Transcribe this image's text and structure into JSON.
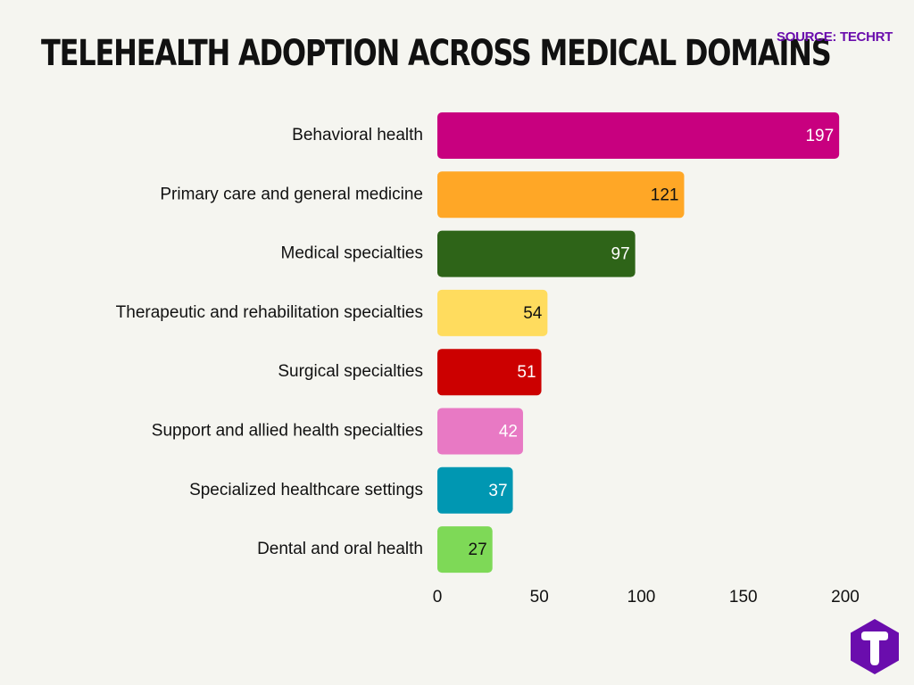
{
  "header": {
    "title": "TELEHEALTH ADOPTION ACROSS MEDICAL DOMAINS",
    "source": "SOURCE: TECHRT"
  },
  "colors": {
    "background": "#f5f5f0",
    "text": "#111111",
    "accent": "#6a0dad"
  },
  "logo": {
    "icon": "techrt-logo-icon",
    "letter": "T",
    "color": "#6a0dad"
  },
  "chart_data": {
    "type": "bar",
    "orientation": "horizontal",
    "title": "TELEHEALTH ADOPTION ACROSS MEDICAL DOMAINS",
    "xlabel": "",
    "ylabel": "",
    "xlim": [
      0,
      200
    ],
    "xticks": [
      0,
      50,
      100,
      150,
      200
    ],
    "grid": false,
    "legend": "none",
    "categories": [
      "Behavioral health",
      "Primary care and general medicine",
      "Medical specialties",
      "Therapeutic and rehabilitation specialties",
      "Surgical specialties",
      "Support and allied health specialties",
      "Specialized healthcare settings",
      "Dental and oral health"
    ],
    "values": [
      197,
      121,
      97,
      54,
      51,
      42,
      37,
      27
    ],
    "bar_colors": [
      "#c8007f",
      "#ffa726",
      "#2e6418",
      "#ffdc5e",
      "#cc0000",
      "#e879c4",
      "#0097b2",
      "#7ed957"
    ],
    "value_label_colors": [
      "#ffffff",
      "#111111",
      "#ffffff",
      "#111111",
      "#ffffff",
      "#ffffff",
      "#ffffff",
      "#111111"
    ]
  }
}
